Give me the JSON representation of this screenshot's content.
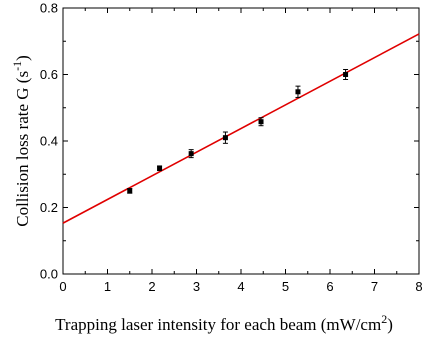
{
  "chart_data": {
    "type": "scatter",
    "title": "",
    "xlabel": "Trapping laser intensity for each beam (mW/cm",
    "xlabel_superscript": "2",
    "xlabel_suffix": ")",
    "ylabel": "Collision loss rate G (s",
    "ylabel_superscript": "-1",
    "ylabel_suffix": ")",
    "xlim": [
      0,
      8
    ],
    "ylim": [
      0.0,
      0.8
    ],
    "x_ticks": [
      0,
      1,
      2,
      3,
      4,
      5,
      6,
      7,
      8
    ],
    "y_ticks": [
      0.0,
      0.2,
      0.4,
      0.6,
      0.8
    ],
    "grid": false,
    "series": [
      {
        "x": [
          1.5,
          2.17,
          2.88,
          3.65,
          4.45,
          5.28,
          6.35
        ],
        "y": [
          0.25,
          0.318,
          0.362,
          0.41,
          0.458,
          0.548,
          0.6
        ],
        "yerr": [
          0.007,
          0.007,
          0.012,
          0.017,
          0.012,
          0.017,
          0.015
        ],
        "color": "#000000"
      }
    ],
    "fit_line": {
      "x": [
        0,
        8
      ],
      "y": [
        0.153,
        0.722
      ],
      "color": "#e00000"
    }
  }
}
